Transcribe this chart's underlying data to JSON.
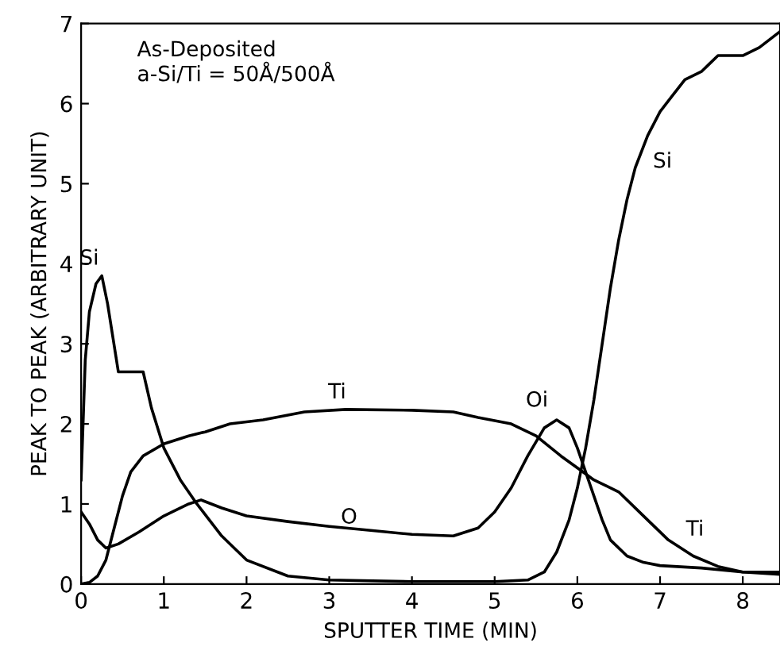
{
  "chart_data": {
    "type": "line",
    "xlabel": "SPUTTER TIME (MIN)",
    "ylabel": "PEAK TO PEAK (ARBITRARY UNIT)",
    "xlim": [
      0,
      8.45
    ],
    "xticks": [
      0,
      1,
      2,
      3,
      4,
      5,
      6,
      7,
      8
    ],
    "ylim": [
      0,
      7
    ],
    "yticks": [
      0,
      1,
      2,
      3,
      4,
      5,
      6,
      7
    ],
    "grid": false,
    "legend": false,
    "marker": "none",
    "line_style": "solid",
    "series": [
      {
        "color": "#000000",
        "x": [
          0,
          0.05,
          0.1,
          0.18,
          0.25,
          0.32,
          0.45,
          0.75,
          0.85,
          1.0,
          1.2,
          1.4,
          1.7,
          2.0,
          2.5,
          3.0,
          4.0,
          5.0,
          5.4,
          5.6,
          5.75,
          5.9,
          6.0,
          6.1,
          6.2,
          6.3,
          6.4,
          6.5,
          6.6,
          6.7,
          6.85,
          7.0,
          7.15,
          7.3,
          7.5,
          7.6,
          7.7,
          7.8,
          8.0,
          8.2,
          8.45
        ],
        "values": [
          1.3,
          2.8,
          3.4,
          3.75,
          3.85,
          3.5,
          2.65,
          2.65,
          2.2,
          1.7,
          1.3,
          1.0,
          0.6,
          0.3,
          0.1,
          0.05,
          0.03,
          0.03,
          0.05,
          0.15,
          0.4,
          0.8,
          1.2,
          1.7,
          2.3,
          3.0,
          3.7,
          4.3,
          4.8,
          5.2,
          5.6,
          5.9,
          6.1,
          6.3,
          6.4,
          6.5,
          6.6,
          6.6,
          6.6,
          6.7,
          6.9
        ]
      },
      {
        "color": "#000000",
        "x": [
          0,
          0.1,
          0.2,
          0.3,
          0.4,
          0.5,
          0.6,
          0.75,
          1.0,
          1.3,
          1.5,
          1.8,
          2.2,
          2.7,
          3.2,
          4.0,
          4.5,
          4.8,
          5.2,
          5.5,
          5.8,
          6.0,
          6.2,
          6.5,
          6.8,
          7.1,
          7.4,
          7.7,
          8.0,
          8.45
        ],
        "values": [
          0,
          0.02,
          0.1,
          0.3,
          0.7,
          1.1,
          1.4,
          1.6,
          1.75,
          1.85,
          1.9,
          2.0,
          2.05,
          2.15,
          2.18,
          2.17,
          2.15,
          2.08,
          2.0,
          1.85,
          1.6,
          1.45,
          1.3,
          1.15,
          0.85,
          0.55,
          0.35,
          0.22,
          0.15,
          0.12
        ]
      },
      {
        "color": "#000000",
        "x": [
          0,
          0.1,
          0.2,
          0.3,
          0.45,
          0.7,
          1.0,
          1.3,
          1.45,
          1.7,
          2.0,
          2.5,
          3.0,
          3.5,
          4.0,
          4.5,
          4.8,
          5.0,
          5.2,
          5.4,
          5.6,
          5.75,
          5.9,
          6.0,
          6.1,
          6.2,
          6.3,
          6.4,
          6.6,
          6.8,
          7.0,
          7.5,
          8.0,
          8.45
        ],
        "values": [
          0.9,
          0.75,
          0.55,
          0.45,
          0.5,
          0.65,
          0.85,
          1.0,
          1.05,
          0.95,
          0.85,
          0.78,
          0.72,
          0.67,
          0.62,
          0.6,
          0.7,
          0.9,
          1.2,
          1.6,
          1.95,
          2.05,
          1.95,
          1.7,
          1.4,
          1.1,
          0.8,
          0.55,
          0.35,
          0.27,
          0.23,
          0.2,
          0.15,
          0.15
        ]
      }
    ],
    "annotations": [
      "As-Deposited\na-Si/Ti = 50Å/500Å",
      {
        "text": "Si",
        "x": 0.25,
        "y": 3.85
      },
      {
        "text": "Si",
        "x": 6.7,
        "y": 5.2
      },
      {
        "text": "Ti",
        "x": 3.2,
        "y": 2.18
      },
      {
        "text": "Ti",
        "x": 7.1,
        "y": 0.55
      },
      {
        "text": "O",
        "x": 3.3,
        "y": 0.7
      },
      {
        "text": "Oi",
        "x": 5.75,
        "y": 2.05
      }
    ]
  }
}
